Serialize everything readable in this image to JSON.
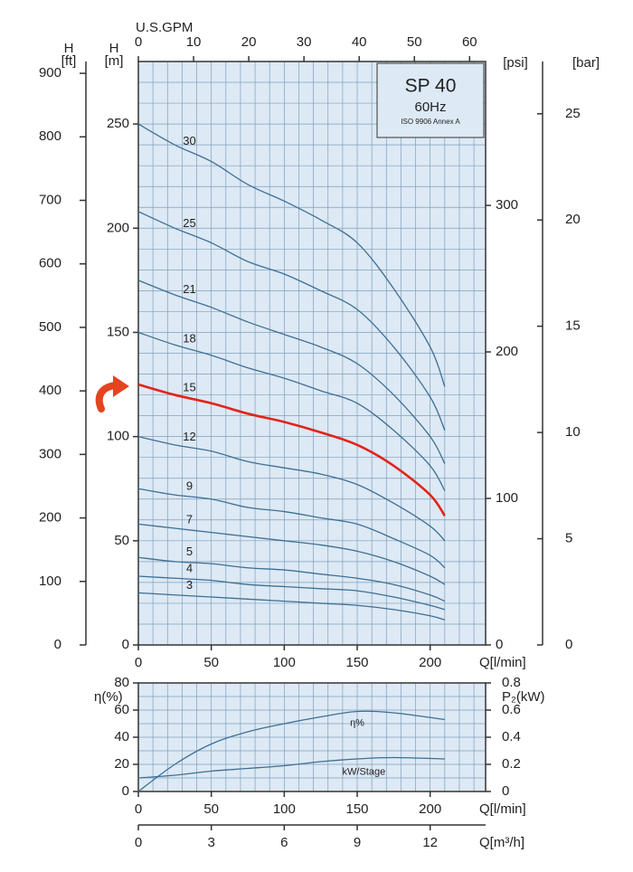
{
  "chart_data": [
    {
      "type": "line",
      "x": [
        0,
        25,
        50,
        75,
        100,
        125,
        150,
        175,
        200,
        210
      ],
      "xlabel": "Q[l/min]",
      "xlim": [
        0,
        238
      ],
      "xticks": [
        0,
        50,
        100,
        150,
        200
      ],
      "ylabel_symbol": "H",
      "ylabel": "[m]",
      "ylim": [
        0,
        280
      ],
      "yticks": [
        0,
        50,
        100,
        150,
        200,
        250
      ],
      "xgrid": [
        0,
        10,
        20,
        30,
        40,
        50,
        60,
        70,
        80,
        90,
        100,
        110,
        120,
        130,
        140,
        150,
        160,
        170,
        180,
        190,
        200,
        210,
        220,
        230
      ],
      "ygrid": [
        0,
        10,
        20,
        30,
        40,
        50,
        60,
        70,
        80,
        90,
        100,
        110,
        120,
        130,
        140,
        150,
        160,
        170,
        180,
        190,
        200,
        210,
        220,
        230,
        240,
        250,
        260,
        270,
        280
      ],
      "grid_color": "#7f9fbd",
      "background": "#dde9f4",
      "top_axis": {
        "label": "U.S.GPM",
        "lim": [
          0,
          62.9
        ],
        "ticks": [
          0,
          10,
          20,
          30,
          40,
          50,
          60
        ]
      },
      "left_axis": {
        "symbol": "H",
        "label": "[ft]",
        "lim": [
          0,
          918.6
        ],
        "ticks": [
          0,
          100,
          200,
          300,
          400,
          500,
          600,
          700,
          800,
          900
        ]
      },
      "right_axes": [
        {
          "label": "[psi]",
          "lim": [
            0,
            398.2
          ],
          "ticks": [
            0,
            100,
            200,
            300
          ]
        },
        {
          "label": "[bar]",
          "lim": [
            0,
            27.46
          ],
          "ticks": [
            0,
            5,
            10,
            15,
            20,
            25
          ]
        }
      ],
      "legend_box": {
        "title": "SP 40",
        "subtitle": "60Hz",
        "note": "ISO 9906 Annex A"
      },
      "series": [
        {
          "name": "30",
          "color": "#3d6f96",
          "values": [
            250,
            240,
            232,
            221,
            213,
            204,
            193,
            171,
            143,
            124
          ]
        },
        {
          "name": "25",
          "color": "#3d6f96",
          "values": [
            208,
            200,
            193,
            184,
            178,
            170,
            161,
            143,
            119,
            103
          ]
        },
        {
          "name": "21",
          "color": "#3d6f96",
          "values": [
            175,
            168,
            162,
            155,
            149,
            143,
            135,
            120,
            100,
            87
          ]
        },
        {
          "name": "18",
          "color": "#3d6f96",
          "values": [
            150,
            144,
            139,
            133,
            128,
            122,
            116,
            103,
            86,
            74
          ]
        },
        {
          "name": "15",
          "color": "#e2231a",
          "values": [
            125,
            120,
            116,
            111,
            107,
            102,
            96,
            86,
            72,
            62
          ]
        },
        {
          "name": "12",
          "color": "#3d6f96",
          "values": [
            100,
            96,
            93,
            88,
            85,
            82,
            77,
            68,
            57,
            50
          ]
        },
        {
          "name": "9",
          "color": "#3d6f96",
          "values": [
            75,
            72,
            70,
            66,
            64,
            61,
            58,
            51,
            43,
            37
          ]
        },
        {
          "name": "7",
          "color": "#3d6f96",
          "values": [
            58,
            56,
            54,
            52,
            50,
            48,
            45,
            40,
            33,
            29
          ]
        },
        {
          "name": "5",
          "color": "#3d6f96",
          "values": [
            42,
            40,
            39,
            37,
            36,
            34,
            32,
            29,
            24,
            21
          ]
        },
        {
          "name": "4",
          "color": "#3d6f96",
          "values": [
            33,
            32,
            31,
            29,
            28,
            27,
            26,
            23,
            19,
            17
          ]
        },
        {
          "name": "3",
          "color": "#3d6f96",
          "values": [
            25,
            24,
            23,
            22,
            21,
            20,
            19,
            17,
            14,
            12
          ]
        }
      ]
    },
    {
      "type": "line",
      "x": [
        0,
        25,
        50,
        75,
        100,
        125,
        150,
        175,
        210
      ],
      "xlabel": "Q[l/min]",
      "xlim": [
        0,
        238
      ],
      "xticks": [
        0,
        50,
        100,
        150,
        200
      ],
      "ylabel": "η(%)",
      "ylim": [
        0,
        80
      ],
      "yticks": [
        0,
        20,
        40,
        60,
        80
      ],
      "y2label": "P₂(kW)",
      "y2lim": [
        0,
        0.8
      ],
      "y2ticks": [
        0,
        0.2,
        0.4,
        0.6,
        0.8
      ],
      "xgrid": [
        0,
        10,
        20,
        30,
        40,
        50,
        60,
        70,
        80,
        90,
        100,
        110,
        120,
        130,
        140,
        150,
        160,
        170,
        180,
        190,
        200,
        210,
        220,
        230
      ],
      "ygrid": [
        0,
        10,
        20,
        30,
        40,
        50,
        60,
        70,
        80
      ],
      "grid_color": "#7f9fbd",
      "background": "#dde9f4",
      "bottom_axis": {
        "label": "Q[m³/h]",
        "lim": [
          0,
          14.28
        ],
        "ticks": [
          0,
          3,
          6,
          9,
          12
        ]
      },
      "series": [
        {
          "name": "η%",
          "color": "#3d6f96",
          "values": [
            0,
            20,
            35,
            44,
            50,
            55,
            59,
            58,
            53
          ]
        },
        {
          "name": "kW/Stage",
          "color": "#3d6f96",
          "axis": "y2",
          "values": [
            0.1,
            0.12,
            0.15,
            0.17,
            0.19,
            0.22,
            0.24,
            0.25,
            0.24
          ]
        }
      ]
    }
  ]
}
